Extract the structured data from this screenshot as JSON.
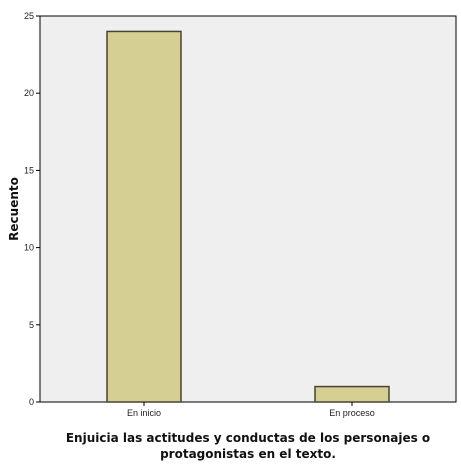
{
  "chart_data": {
    "type": "bar",
    "categories": [
      "En inicio",
      "En proceso"
    ],
    "values": [
      24,
      1
    ],
    "title": "",
    "xlabel_lines": [
      "Enjuicia las actitudes y conductas de los personajes o",
      "protagonistas en el texto."
    ],
    "ylabel": "Recuento",
    "ylim": [
      0,
      25
    ],
    "yticks": [
      0,
      5,
      10,
      15,
      20,
      25
    ],
    "grid": false,
    "colors": {
      "plot_background": "#efefef",
      "bar_fill": "#d5cf93",
      "bar_stroke": "#4a4330"
    }
  }
}
